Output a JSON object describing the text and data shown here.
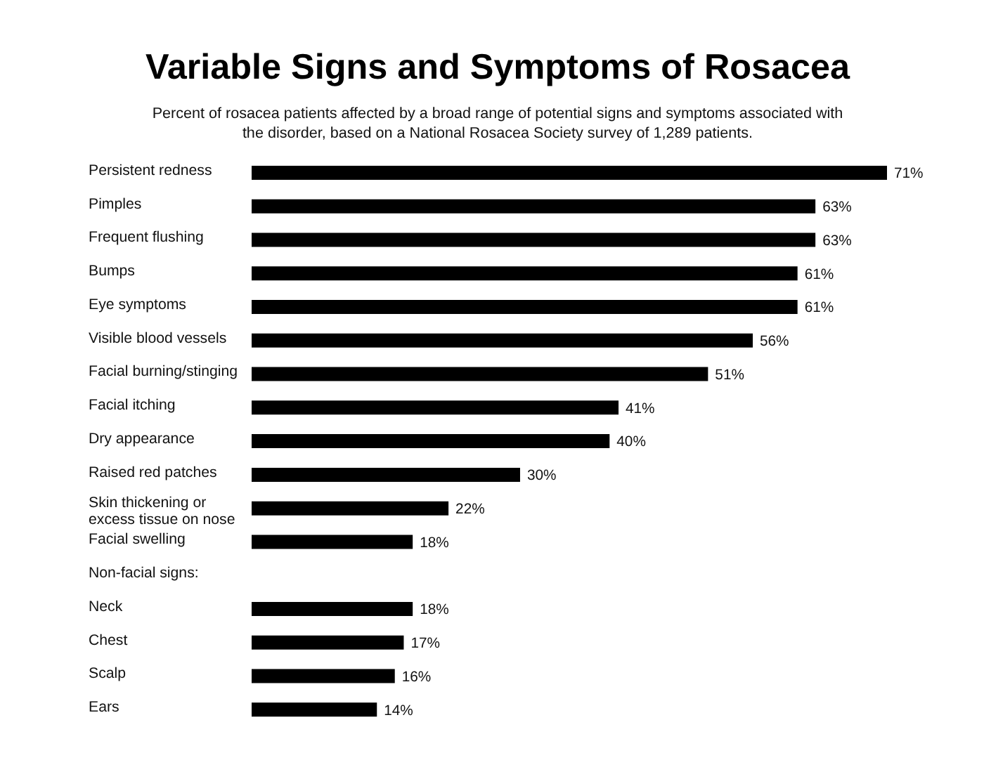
{
  "chart_data": {
    "type": "bar",
    "orientation": "horizontal",
    "title": "Variable Signs and Symptoms of Rosacea",
    "subtitle": "Percent of rosacea patients affected by a broad range of potential signs and symptoms associated with the disorder, based on a National Rosacea Society survey of 1,289 patients.",
    "categories": [
      "Persistent redness",
      "Pimples",
      "Frequent flushing",
      "Bumps",
      "Eye symptoms",
      "Visible blood vessels",
      "Facial burning/stinging",
      "Facial itching",
      "Dry appearance",
      "Raised red patches",
      "Skin thickening or excess tissue on nose",
      "Facial swelling",
      null,
      "Neck",
      "Chest",
      "Scalp",
      "Ears"
    ],
    "values": [
      71,
      63,
      63,
      61,
      61,
      56,
      51,
      41,
      40,
      30,
      22,
      18,
      null,
      18,
      17,
      16,
      14
    ],
    "value_labels": [
      "71%",
      "63%",
      "63%",
      "61%",
      "61%",
      "56%",
      "51%",
      "41%",
      "40%",
      "30%",
      "22%",
      "18%",
      null,
      "18%",
      "17%",
      "16%",
      "14%"
    ],
    "annotations": [
      "Non-facial signs:"
    ],
    "color": "#000000",
    "tick_labels": "y"
  }
}
